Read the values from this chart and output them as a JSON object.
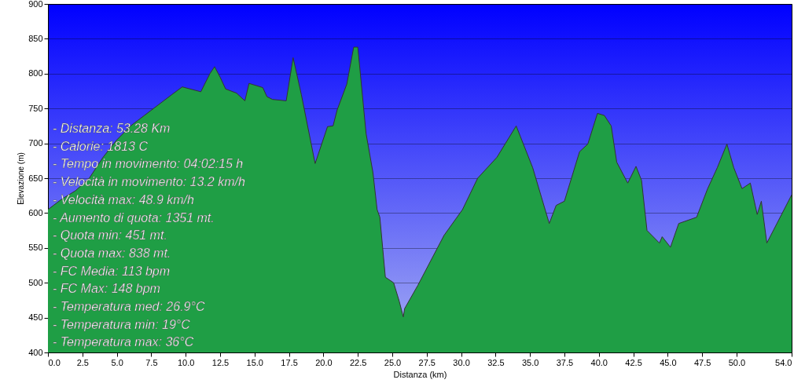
{
  "chart_data": {
    "type": "area",
    "xlabel": "Distanza  (km)",
    "ylabel": "Elevazione (m)",
    "x": [
      0,
      1,
      2,
      3,
      4,
      5,
      6,
      7,
      8,
      9,
      9.75,
      11.1,
      11.76,
      12.1,
      12.5,
      12.9,
      13.7,
      14.3,
      14.6,
      15.6,
      15.9,
      16.3,
      17.3,
      17.8,
      18.4,
      19.4,
      20.3,
      20.7,
      21.0,
      21.7,
      22.2,
      22.5,
      23.1,
      23.6,
      23.9,
      24.1,
      24.5,
      25.1,
      25.5,
      25.8,
      25.9,
      26.85,
      28.76,
      30.1,
      31.2,
      32.6,
      34.0,
      35.2,
      36.4,
      36.9,
      37.5,
      38.6,
      39.2,
      39.9,
      40.4,
      40.9,
      41.3,
      42.1,
      42.7,
      43.1,
      43.5,
      44.4,
      44.6,
      45.2,
      45.8,
      47.1,
      47.9,
      48.6,
      49.3,
      49.8,
      50.4,
      51.0,
      51.5,
      51.8,
      52.2,
      54.0
    ],
    "series": [
      {
        "color": "#1f9e45",
        "values": [
          605,
          620,
          632,
          650,
          680,
          705,
          725,
          740,
          755,
          770,
          781,
          774,
          800,
          810,
          795,
          778,
          772,
          761,
          786,
          780,
          767,
          763,
          761,
          823,
          770,
          671,
          724,
          725,
          748,
          785,
          838,
          838,
          714,
          658,
          605,
          594,
          508,
          500,
          474,
          451,
          463,
          496,
          568,
          605,
          650,
          680,
          725,
          665,
          585,
          611,
          617,
          688,
          699,
          743,
          740,
          725,
          673,
          643,
          667,
          647,
          575,
          557,
          566,
          551,
          585,
          594,
          635,
          665,
          699,
          665,
          635,
          643,
          598,
          617,
          557,
          626
        ]
      }
    ],
    "xlim": [
      0,
      54
    ],
    "ylim": [
      400,
      900
    ],
    "xticks": [
      {
        "value": 0,
        "label": "0.0"
      },
      {
        "value": 2.5,
        "label": "2.5"
      },
      {
        "value": 5,
        "label": "5.0"
      },
      {
        "value": 7.5,
        "label": "7.5"
      },
      {
        "value": 10,
        "label": "10.0"
      },
      {
        "value": 12.5,
        "label": "12.5"
      },
      {
        "value": 15,
        "label": "15.0"
      },
      {
        "value": 17.5,
        "label": "17.5"
      },
      {
        "value": 20,
        "label": "20.0"
      },
      {
        "value": 22.5,
        "label": "22.5"
      },
      {
        "value": 25,
        "label": "25.0"
      },
      {
        "value": 27.5,
        "label": "27.5"
      },
      {
        "value": 30,
        "label": "30.0"
      },
      {
        "value": 32.5,
        "label": "32.5"
      },
      {
        "value": 35,
        "label": "35.0"
      },
      {
        "value": 37.5,
        "label": "37.5"
      },
      {
        "value": 40,
        "label": "40.0"
      },
      {
        "value": 42.5,
        "label": "42.5"
      },
      {
        "value": 45,
        "label": "45.0"
      },
      {
        "value": 47.5,
        "label": "47.5"
      },
      {
        "value": 50,
        "label": "50.0"
      },
      {
        "value": 54,
        "label": "54.0"
      }
    ],
    "yticks": [
      400,
      450,
      500,
      550,
      600,
      650,
      700,
      750,
      800,
      850,
      900
    ],
    "grid": "y",
    "annotations": [
      "- Distanza: 53.28 Km",
      "- Calorie: 1813 C",
      "- Tempo in movimento: 04:02:15 h",
      "- Velocità in movimento: 13.2 km/h",
      "- Velocità max: 48.9 km/h",
      "- Aumento di quota: 1351 mt.",
      "- Quota min: 451 mt.",
      "- Quota max: 838 mt.",
      "- FC Media: 113 bpm",
      "- FC Max: 148 bpm",
      "- Temperatura med: 26.9°C",
      "- Temperatura min: 19°C",
      "- Temperatura max: 36°C"
    ]
  }
}
